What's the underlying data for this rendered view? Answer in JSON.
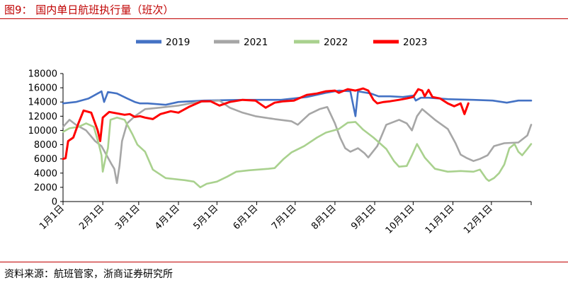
{
  "figure": {
    "title": "图9：  国内单日航班执行量（班次）",
    "source": "资料来源：航班管家，浙商证券研究所"
  },
  "chart_data": {
    "type": "line",
    "title": "",
    "xlabel": "",
    "ylabel": "",
    "ylim": [
      0,
      18000
    ],
    "yticks": [
      0,
      2000,
      4000,
      6000,
      8000,
      10000,
      12000,
      14000,
      16000,
      18000
    ],
    "x_tick_labels": [
      "1月1日",
      "2月1日",
      "3月1日",
      "4月1日",
      "5月1日",
      "6月1日",
      "7月1日",
      "8月1日",
      "9月1日",
      "10月1日",
      "11月1日",
      "12月1日"
    ],
    "x_tick_days": [
      0,
      31,
      59,
      90,
      120,
      151,
      181,
      212,
      243,
      273,
      304,
      334
    ],
    "x_range_days": [
      0,
      365
    ],
    "grid": false,
    "legend_position": "top",
    "series": [
      {
        "name": "2019",
        "color": "#4472C4",
        "points": [
          [
            0,
            13800
          ],
          [
            10,
            14000
          ],
          [
            20,
            14500
          ],
          [
            28,
            15300
          ],
          [
            30,
            15500
          ],
          [
            32,
            14000
          ],
          [
            35,
            15400
          ],
          [
            42,
            15200
          ],
          [
            50,
            14500
          ],
          [
            56,
            14000
          ],
          [
            60,
            13800
          ],
          [
            66,
            13800
          ],
          [
            80,
            13600
          ],
          [
            90,
            14000
          ],
          [
            110,
            14200
          ],
          [
            140,
            14300
          ],
          [
            170,
            14300
          ],
          [
            190,
            14700
          ],
          [
            205,
            15300
          ],
          [
            215,
            15600
          ],
          [
            224,
            15500
          ],
          [
            228,
            12000
          ],
          [
            230,
            15500
          ],
          [
            240,
            15200
          ],
          [
            246,
            14800
          ],
          [
            255,
            14800
          ],
          [
            265,
            14700
          ],
          [
            273,
            14900
          ],
          [
            275,
            14200
          ],
          [
            279,
            14600
          ],
          [
            285,
            14600
          ],
          [
            300,
            14400
          ],
          [
            320,
            14300
          ],
          [
            335,
            14200
          ],
          [
            346,
            13900
          ],
          [
            355,
            14200
          ],
          [
            365,
            14200
          ]
        ]
      },
      {
        "name": "2021",
        "color": "#A6A6A6",
        "points": [
          [
            0,
            10500
          ],
          [
            5,
            11500
          ],
          [
            10,
            10800
          ],
          [
            18,
            10000
          ],
          [
            25,
            8500
          ],
          [
            30,
            7800
          ],
          [
            34,
            6500
          ],
          [
            38,
            5200
          ],
          [
            40,
            4600
          ],
          [
            42,
            2600
          ],
          [
            44,
            5000
          ],
          [
            46,
            8500
          ],
          [
            50,
            11000
          ],
          [
            56,
            12000
          ],
          [
            64,
            13000
          ],
          [
            75,
            13200
          ],
          [
            90,
            13500
          ],
          [
            105,
            14000
          ],
          [
            122,
            14200
          ],
          [
            130,
            13200
          ],
          [
            140,
            12500
          ],
          [
            150,
            12000
          ],
          [
            165,
            11600
          ],
          [
            178,
            11300
          ],
          [
            183,
            10800
          ],
          [
            192,
            12300
          ],
          [
            200,
            13000
          ],
          [
            206,
            13300
          ],
          [
            212,
            11000
          ],
          [
            216,
            9000
          ],
          [
            220,
            7500
          ],
          [
            224,
            7000
          ],
          [
            230,
            7500
          ],
          [
            235,
            6800
          ],
          [
            238,
            6200
          ],
          [
            245,
            7800
          ],
          [
            252,
            10800
          ],
          [
            262,
            11500
          ],
          [
            268,
            11000
          ],
          [
            272,
            10000
          ],
          [
            276,
            12000
          ],
          [
            280,
            13000
          ],
          [
            290,
            11500
          ],
          [
            300,
            10200
          ],
          [
            306,
            8200
          ],
          [
            310,
            6600
          ],
          [
            315,
            6100
          ],
          [
            320,
            5700
          ],
          [
            325,
            6000
          ],
          [
            331,
            6500
          ],
          [
            336,
            7800
          ],
          [
            344,
            8200
          ],
          [
            355,
            8300
          ],
          [
            362,
            9300
          ],
          [
            365,
            10800
          ]
        ]
      },
      {
        "name": "2022",
        "color": "#A9D18E",
        "points": [
          [
            0,
            9800
          ],
          [
            5,
            10300
          ],
          [
            12,
            10500
          ],
          [
            18,
            11000
          ],
          [
            24,
            10500
          ],
          [
            28,
            8000
          ],
          [
            30,
            6500
          ],
          [
            31,
            4200
          ],
          [
            33,
            6000
          ],
          [
            35,
            7500
          ],
          [
            37,
            11500
          ],
          [
            42,
            11800
          ],
          [
            48,
            11500
          ],
          [
            54,
            9500
          ],
          [
            58,
            8000
          ],
          [
            64,
            7000
          ],
          [
            70,
            4500
          ],
          [
            80,
            3300
          ],
          [
            95,
            3000
          ],
          [
            102,
            2800
          ],
          [
            107,
            2000
          ],
          [
            112,
            2500
          ],
          [
            120,
            2800
          ],
          [
            128,
            3500
          ],
          [
            135,
            4200
          ],
          [
            145,
            4400
          ],
          [
            160,
            4600
          ],
          [
            165,
            4700
          ],
          [
            172,
            6000
          ],
          [
            178,
            6900
          ],
          [
            188,
            7800
          ],
          [
            198,
            9000
          ],
          [
            205,
            9700
          ],
          [
            215,
            10200
          ],
          [
            222,
            11100
          ],
          [
            228,
            11200
          ],
          [
            234,
            10100
          ],
          [
            242,
            9000
          ],
          [
            252,
            7400
          ],
          [
            258,
            5700
          ],
          [
            262,
            4900
          ],
          [
            268,
            5000
          ],
          [
            272,
            6500
          ],
          [
            276,
            8100
          ],
          [
            282,
            6200
          ],
          [
            290,
            4600
          ],
          [
            300,
            4200
          ],
          [
            310,
            4300
          ],
          [
            320,
            4200
          ],
          [
            325,
            4500
          ],
          [
            330,
            3200
          ],
          [
            332,
            2900
          ],
          [
            336,
            3300
          ],
          [
            340,
            4000
          ],
          [
            344,
            5200
          ],
          [
            348,
            7500
          ],
          [
            352,
            8100
          ],
          [
            355,
            7000
          ],
          [
            358,
            6500
          ],
          [
            362,
            7400
          ],
          [
            365,
            8100
          ]
        ]
      },
      {
        "name": "2023",
        "color": "#FF0000",
        "points": [
          [
            0,
            6000
          ],
          [
            2,
            6100
          ],
          [
            4,
            8500
          ],
          [
            8,
            9000
          ],
          [
            12,
            11000
          ],
          [
            16,
            12800
          ],
          [
            22,
            12500
          ],
          [
            27,
            10000
          ],
          [
            29,
            8500
          ],
          [
            31,
            11800
          ],
          [
            36,
            12600
          ],
          [
            42,
            12400
          ],
          [
            48,
            12200
          ],
          [
            52,
            12300
          ],
          [
            56,
            11900
          ],
          [
            60,
            12000
          ],
          [
            64,
            11800
          ],
          [
            70,
            11600
          ],
          [
            76,
            12300
          ],
          [
            84,
            12700
          ],
          [
            90,
            12500
          ],
          [
            98,
            13300
          ],
          [
            108,
            14100
          ],
          [
            115,
            14100
          ],
          [
            122,
            13500
          ],
          [
            130,
            14000
          ],
          [
            140,
            14300
          ],
          [
            150,
            14200
          ],
          [
            158,
            13200
          ],
          [
            165,
            13900
          ],
          [
            172,
            14100
          ],
          [
            180,
            14200
          ],
          [
            190,
            15000
          ],
          [
            198,
            15200
          ],
          [
            205,
            15500
          ],
          [
            212,
            15600
          ],
          [
            215,
            15300
          ],
          [
            222,
            15800
          ],
          [
            228,
            15600
          ],
          [
            234,
            15900
          ],
          [
            238,
            15600
          ],
          [
            242,
            14300
          ],
          [
            245,
            13800
          ],
          [
            250,
            14000
          ],
          [
            255,
            14100
          ],
          [
            262,
            14300
          ],
          [
            268,
            14500
          ],
          [
            273,
            14700
          ],
          [
            277,
            15800
          ],
          [
            280,
            15600
          ],
          [
            282,
            14800
          ],
          [
            285,
            15700
          ],
          [
            288,
            14700
          ],
          [
            294,
            14500
          ],
          [
            300,
            13800
          ],
          [
            305,
            13400
          ],
          [
            310,
            13800
          ],
          [
            313,
            12300
          ],
          [
            316,
            13800
          ]
        ]
      }
    ]
  }
}
